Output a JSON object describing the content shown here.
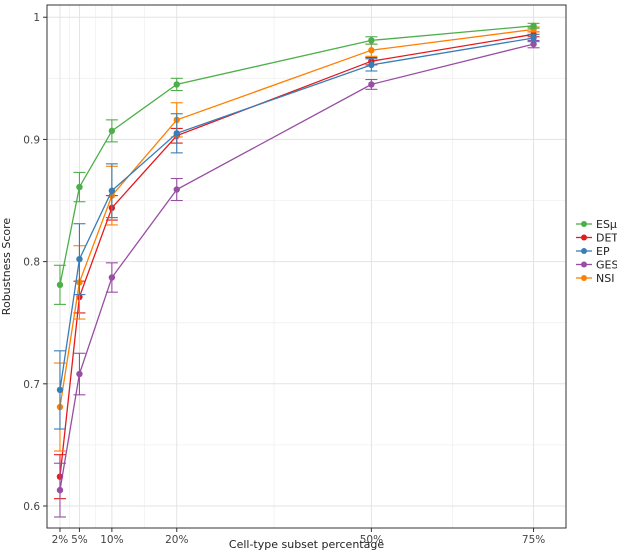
{
  "chart_data": {
    "type": "line",
    "xlabel": "Cell-type subset percentage",
    "ylabel": "Robustness Score",
    "x": [
      2,
      5,
      10,
      20,
      50,
      75
    ],
    "x_tick_labels": [
      "2%",
      "5%",
      "10%",
      "20%",
      "50%",
      "75%"
    ],
    "y_ticks": [
      0.6,
      0.7,
      0.8,
      0.9,
      1.0
    ],
    "y_tick_labels": [
      "0.6",
      "0.7",
      "0.8",
      "0.9",
      "1"
    ],
    "xlim": [
      0,
      80
    ],
    "ylim": [
      0.582,
      1.01
    ],
    "grid": true,
    "legend_position": "right",
    "series": [
      {
        "name": "ESμ",
        "color": "#4daf4a",
        "values": [
          0.781,
          0.861,
          0.907,
          0.945,
          0.981,
          0.993
        ],
        "error": [
          0.016,
          0.012,
          0.009,
          0.005,
          0.003,
          0.002
        ]
      },
      {
        "name": "DET",
        "color": "#e41a1c",
        "values": [
          0.624,
          0.771,
          0.844,
          0.903,
          0.964,
          0.986
        ],
        "error": [
          0.018,
          0.013,
          0.01,
          0.006,
          0.003,
          0.002
        ]
      },
      {
        "name": "EP",
        "color": "#377eb8",
        "values": [
          0.695,
          0.802,
          0.858,
          0.905,
          0.961,
          0.983
        ],
        "error": [
          0.032,
          0.029,
          0.022,
          0.016,
          0.005,
          0.003
        ]
      },
      {
        "name": "GES",
        "color": "#984ea3",
        "values": [
          0.613,
          0.708,
          0.787,
          0.859,
          0.945,
          0.978
        ],
        "error": [
          0.022,
          0.017,
          0.012,
          0.009,
          0.004,
          0.003
        ]
      },
      {
        "name": "NSI",
        "color": "#ff7f00",
        "values": [
          0.681,
          0.783,
          0.854,
          0.916,
          0.973,
          0.99
        ],
        "error": [
          0.036,
          0.03,
          0.024,
          0.014,
          0.005,
          0.002
        ]
      }
    ]
  }
}
